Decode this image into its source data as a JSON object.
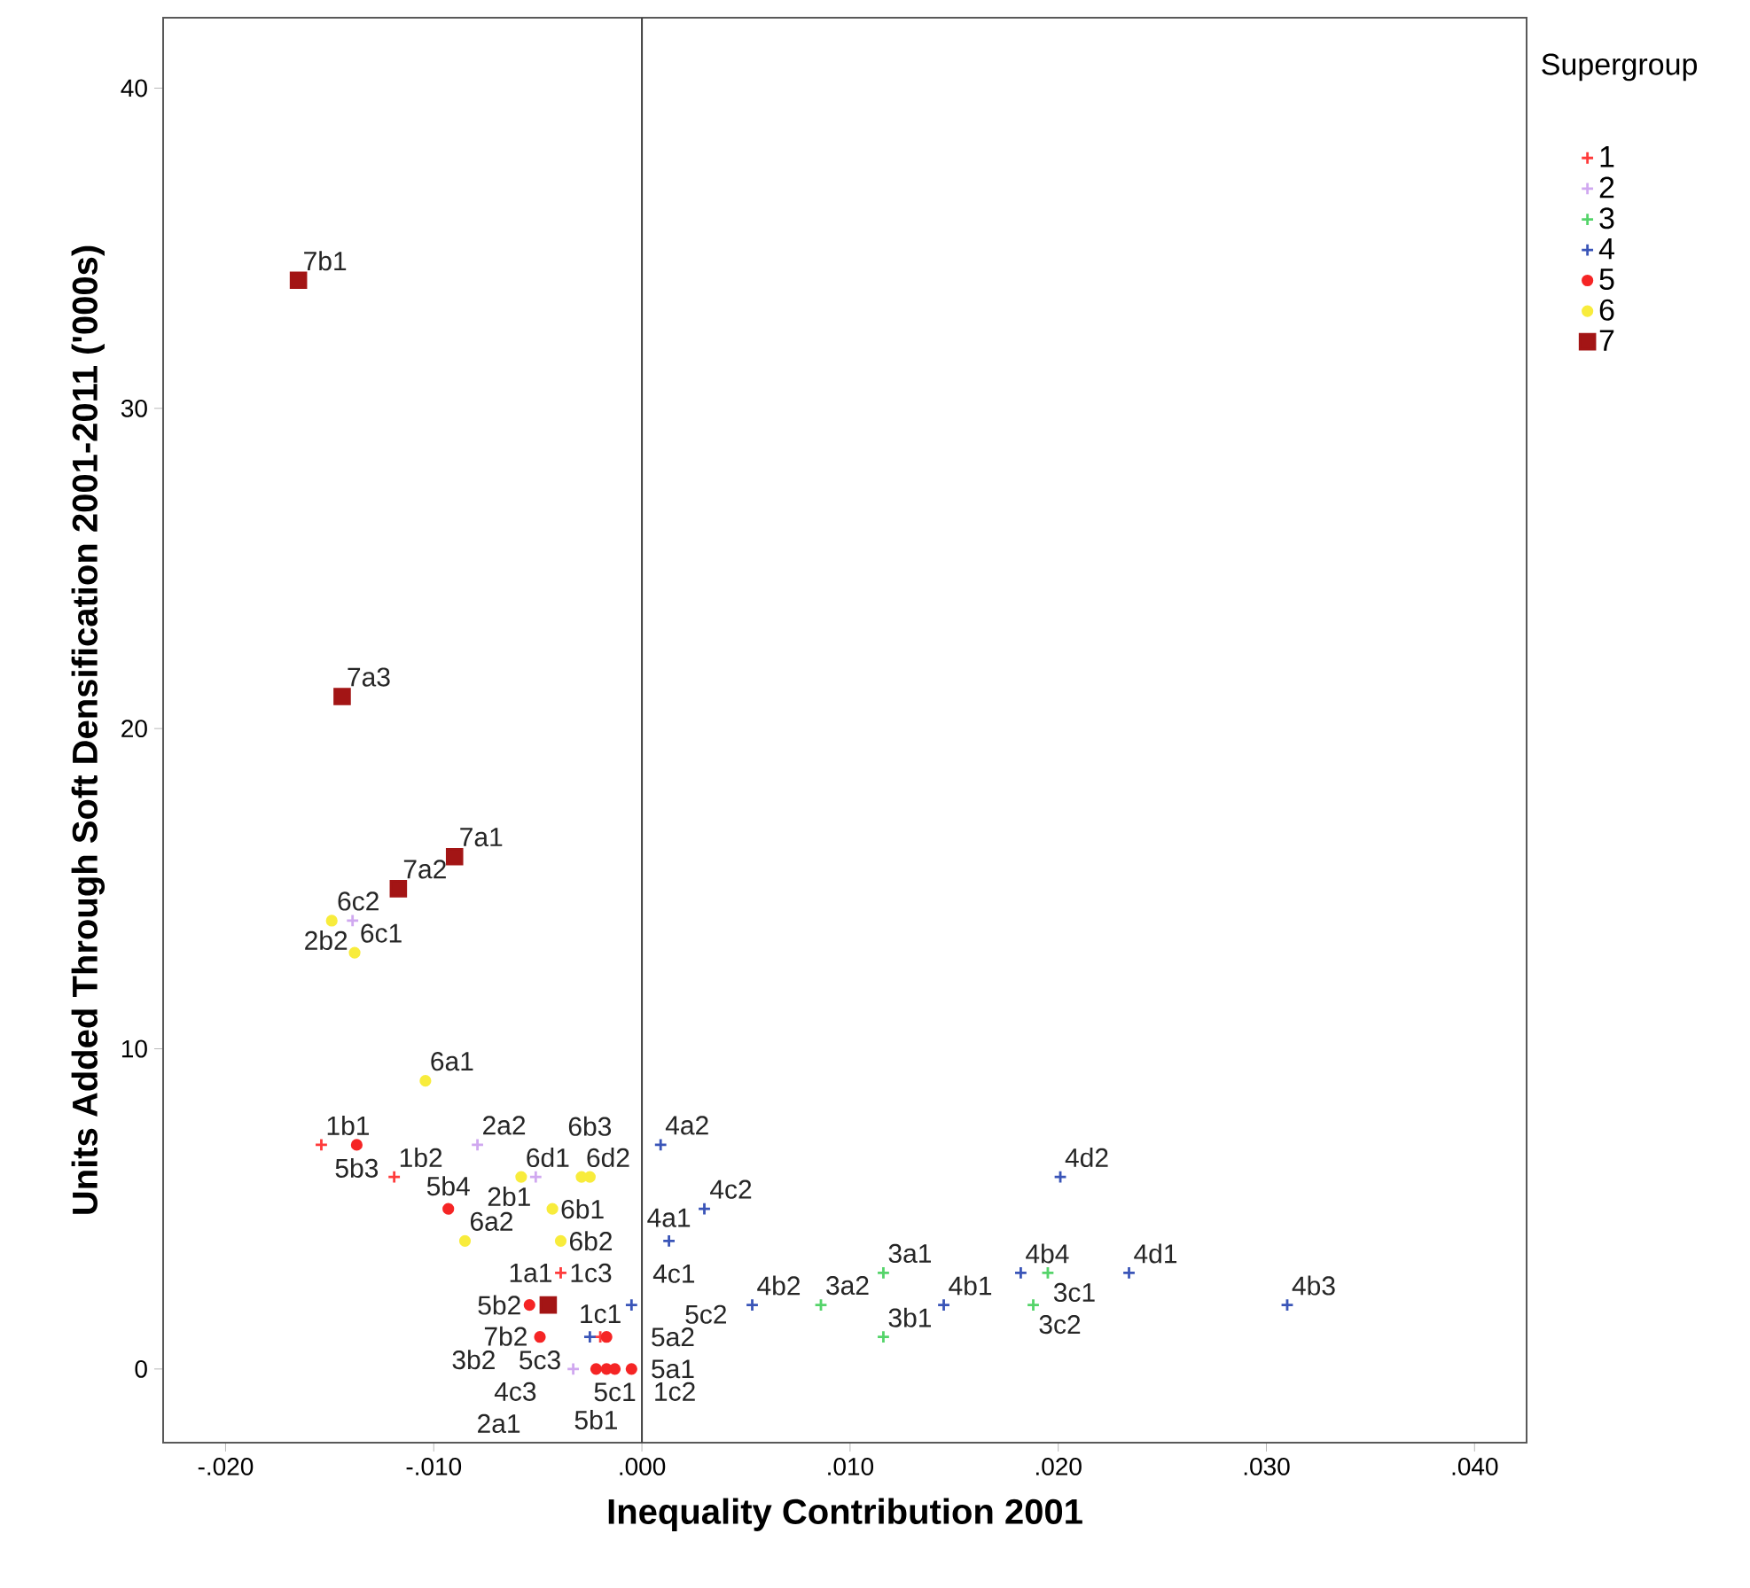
{
  "chart_data": {
    "type": "scatter",
    "xlabel": "Inequality Contribution 2001",
    "ylabel": "Units Added Through Soft Densification 2001-2011 ('000s)",
    "legend_title": "Supergroup",
    "legend": "top right",
    "grid": false,
    "xlim": [
      -0.023,
      0.0425
    ],
    "ylim": [
      -2.3,
      42.2
    ],
    "xticks": [
      {
        "value": -0.02,
        "label": "-.020"
      },
      {
        "value": -0.01,
        "label": "-.010"
      },
      {
        "value": 0,
        "label": ".000"
      },
      {
        "value": 0.01,
        "label": ".010"
      },
      {
        "value": 0.02,
        "label": ".020"
      },
      {
        "value": 0.03,
        "label": ".030"
      },
      {
        "value": 0.04,
        "label": ".040"
      }
    ],
    "yticks": [
      0,
      10,
      20,
      30,
      40
    ],
    "ref_lines": [
      {
        "axis": "x",
        "value": 0,
        "color": "#404040"
      }
    ],
    "series": [
      {
        "name": "1",
        "color": "#ff3b3b",
        "marker": "cross",
        "x": [
          -0.0154,
          -0.0119,
          -0.0039,
          -0.002
        ],
        "values": [
          7,
          6,
          3,
          1
        ]
      },
      {
        "name": "2",
        "color": "#d0a8f0",
        "marker": "cross",
        "x": [
          -0.0079,
          -0.0051,
          -0.0033,
          -0.0139
        ],
        "values": [
          7,
          6,
          0,
          14
        ]
      },
      {
        "name": "3",
        "color": "#55d46a",
        "marker": "cross",
        "x": [
          0.0086,
          0.0116,
          0.0116,
          0.0195,
          0.0188
        ],
        "values": [
          2,
          3,
          1,
          3,
          2
        ]
      },
      {
        "name": "4",
        "color": "#3a55b8",
        "marker": "cross",
        "x": [
          0.0009,
          0.003,
          0.0013,
          -0.0005,
          0.0053,
          0.0145,
          0.0182,
          0.0201,
          0.0234,
          0.031,
          -0.0025
        ],
        "values": [
          7,
          5,
          4,
          2,
          2,
          2,
          3,
          6,
          3,
          2,
          1
        ]
      },
      {
        "name": "5",
        "color": "#f52525",
        "marker": "circle",
        "x": [
          -0.0137,
          -0.0093,
          -0.0054,
          -0.0049,
          -0.0017,
          -0.0022,
          -0.0017,
          -0.0013,
          -0.0005
        ],
        "values": [
          7,
          5,
          2,
          1,
          1,
          0,
          0,
          0,
          0
        ]
      },
      {
        "name": "6",
        "color": "#f8ec3c",
        "marker": "circle",
        "x": [
          -0.0104,
          -0.0058,
          -0.0029,
          -0.0025,
          -0.0043,
          -0.0085,
          -0.0039,
          -0.0149,
          -0.0138
        ],
        "values": [
          9,
          6,
          6,
          6,
          5,
          4,
          4,
          14,
          13
        ]
      },
      {
        "name": "7",
        "color": "#a31515",
        "marker": "square",
        "x": [
          -0.0165,
          -0.0144,
          -0.009,
          -0.0117,
          -0.0045
        ],
        "values": [
          34,
          21,
          16,
          15,
          2
        ]
      }
    ],
    "annotations": [
      {
        "text": "7b1",
        "x": -0.0165,
        "y": 34
      },
      {
        "text": "7a3",
        "x": -0.0144,
        "y": 21
      },
      {
        "text": "7a1",
        "x": -0.009,
        "y": 16
      },
      {
        "text": "6c2",
        "x": -0.0149,
        "y": 14
      },
      {
        "text": "7a2",
        "x": -0.0117,
        "y": 15
      },
      {
        "text": "2b2",
        "x": -0.0139,
        "y": 14
      },
      {
        "text": "6c1",
        "x": -0.0138,
        "y": 13
      },
      {
        "text": "2a2",
        "x": -0.0079,
        "y": 7
      },
      {
        "text": "6a1",
        "x": -0.0104,
        "y": 9
      },
      {
        "text": "1b1",
        "x": -0.0154,
        "y": 7
      },
      {
        "text": "6d1",
        "x": -0.0058,
        "y": 6
      },
      {
        "text": "6d2",
        "x": -0.0029,
        "y": 6
      },
      {
        "text": "4a2",
        "x": 0.0009,
        "y": 7
      },
      {
        "text": "5b3",
        "x": -0.0137,
        "y": 7
      },
      {
        "text": "1b2",
        "x": -0.0119,
        "y": 6
      },
      {
        "text": "2b1",
        "x": -0.0051,
        "y": 6
      },
      {
        "text": "4c2",
        "x": 0.003,
        "y": 5
      },
      {
        "text": "5b4",
        "x": -0.0093,
        "y": 5
      },
      {
        "text": "6b1",
        "x": -0.0043,
        "y": 5
      },
      {
        "text": "6b3",
        "x": -0.0025,
        "y": 6
      },
      {
        "text": "6b2",
        "x": -0.0039,
        "y": 4
      },
      {
        "text": "1c3",
        "x": -0.0039,
        "y": 3
      },
      {
        "text": "4a1",
        "x": 0.0013,
        "y": 4
      },
      {
        "text": "3a1",
        "x": 0.0116,
        "y": 3
      },
      {
        "text": "4b4",
        "x": 0.0182,
        "y": 3
      },
      {
        "text": "3c1",
        "x": 0.0195,
        "y": 3
      },
      {
        "text": "4d1",
        "x": 0.0234,
        "y": 3
      },
      {
        "text": "4d2",
        "x": 0.0201,
        "y": 6
      },
      {
        "text": "4b3",
        "x": 0.031,
        "y": 2
      },
      {
        "text": "6a2",
        "x": -0.0085,
        "y": 4
      },
      {
        "text": "1a1",
        "x": -0.0039,
        "y": 3
      },
      {
        "text": "5b2",
        "x": -0.0054,
        "y": 2
      },
      {
        "text": "1c1",
        "x": -0.002,
        "y": 1
      },
      {
        "text": "4c1",
        "x": -0.0005,
        "y": 2
      },
      {
        "text": "4b2",
        "x": 0.0053,
        "y": 2
      },
      {
        "text": "7b2",
        "x": -0.0045,
        "y": 2
      },
      {
        "text": "5c3",
        "x": -0.0049,
        "y": 1
      },
      {
        "text": "3b2",
        "x": -0.0045,
        "y": 2
      },
      {
        "text": "5a2",
        "x": -0.0017,
        "y": 1
      },
      {
        "text": "5c1",
        "x": -0.0013,
        "y": 0
      },
      {
        "text": "3a2",
        "x": 0.0086,
        "y": 2
      },
      {
        "text": "4b1",
        "x": 0.0145,
        "y": 2
      },
      {
        "text": "3c2",
        "x": 0.0188,
        "y": 2
      },
      {
        "text": "3b1",
        "x": 0.0116,
        "y": 1
      },
      {
        "text": "4c3",
        "x": -0.0025,
        "y": 1
      },
      {
        "text": "5b1",
        "x": -0.0022,
        "y": 0
      },
      {
        "text": "2a1",
        "x": -0.0033,
        "y": 0
      },
      {
        "text": "5a1",
        "x": -0.0017,
        "y": 0
      },
      {
        "text": "1c2",
        "x": -0.002,
        "y": 1
      },
      {
        "text": "5c2",
        "x": -0.0005,
        "y": 0
      }
    ]
  }
}
